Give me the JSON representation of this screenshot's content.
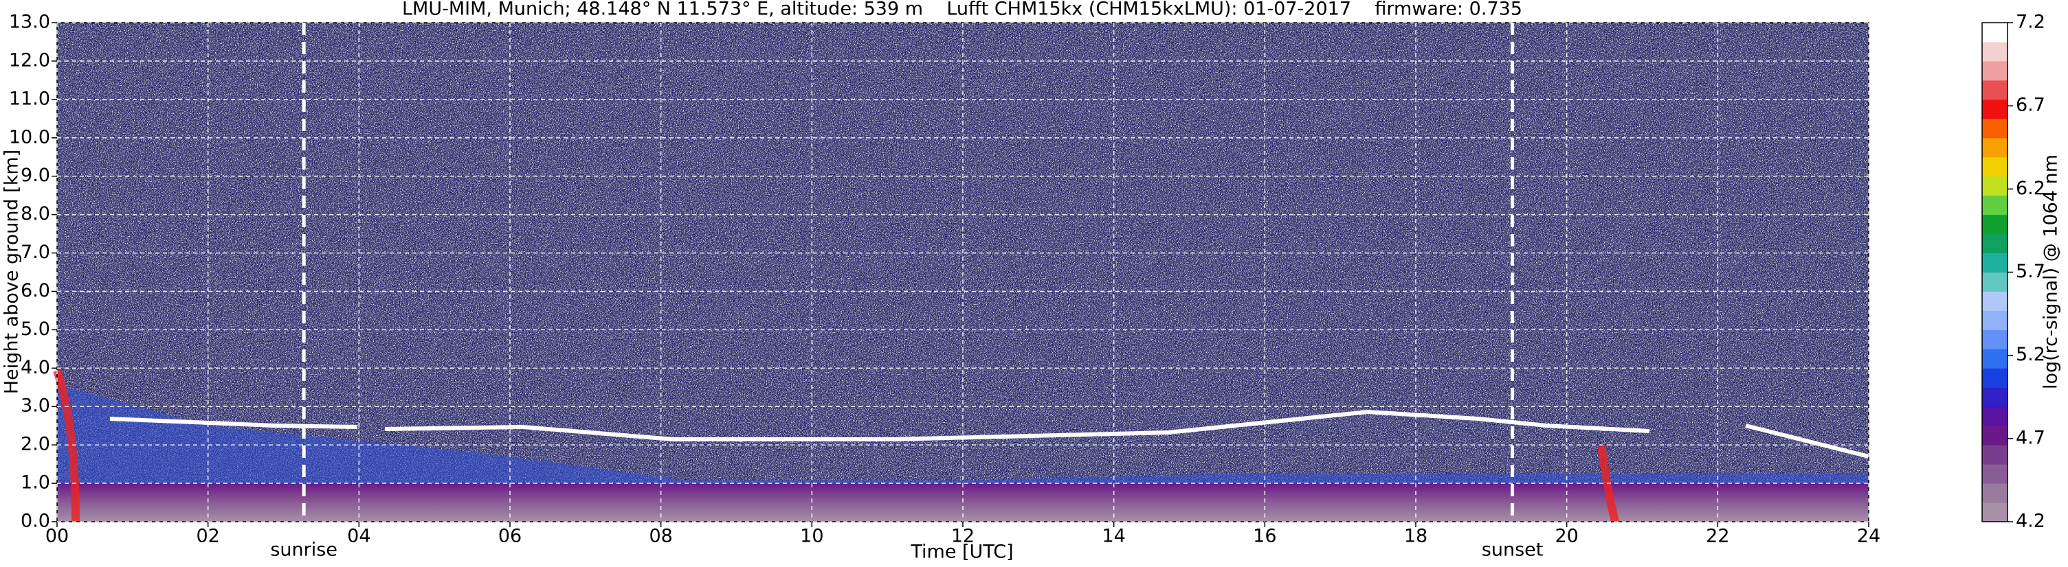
{
  "chart_data": {
    "type": "heatmap",
    "title": "LMU-MIM, Munich; 48.148° N 11.573° E, altitude: 539 m    Lufft CHM15kx (CHM15kxLMU): 01-07-2017    firmware: 0.735",
    "x_label": "Time [UTC]",
    "y_label": "Height above ground [km]",
    "colorbar_label": "log(rc-signal) @ 1064 nm",
    "xlim": [
      0,
      24
    ],
    "xticks": [
      {
        "value": 0,
        "label": "00"
      },
      {
        "value": 2,
        "label": "02"
      },
      {
        "value": 4,
        "label": "04"
      },
      {
        "value": 6,
        "label": "06"
      },
      {
        "value": 8,
        "label": "08"
      },
      10,
      12,
      14,
      16,
      18,
      20,
      22,
      24
    ],
    "ylim": [
      0,
      13
    ],
    "yticks": [
      {
        "value": 0,
        "label": "0.0"
      },
      {
        "value": 1,
        "label": "1.0"
      },
      {
        "value": 2,
        "label": "2.0"
      },
      {
        "value": 3,
        "label": "3.0"
      },
      {
        "value": 4,
        "label": "4.0"
      },
      {
        "value": 5,
        "label": "5.0"
      },
      {
        "value": 6,
        "label": "6.0"
      },
      {
        "value": 7,
        "label": "7.0"
      },
      {
        "value": 8,
        "label": "8.0"
      },
      {
        "value": 9,
        "label": "9.0"
      },
      {
        "value": 10,
        "label": "10.0"
      },
      {
        "value": 11,
        "label": "11.0"
      },
      {
        "value": 12,
        "label": "12.0"
      },
      {
        "value": 13,
        "label": "13.0"
      }
    ],
    "clim": [
      4.2,
      7.2
    ],
    "cticks": [
      4.2,
      4.7,
      5.2,
      5.7,
      6.2,
      6.7,
      7.2
    ],
    "colorscale": [
      "#a890a8",
      "#9a7a9e",
      "#8a5c95",
      "#7a3c8c",
      "#6a1a88",
      "#5a10a0",
      "#3020c8",
      "#1840e0",
      "#3070f0",
      "#6090f8",
      "#90b0f8",
      "#b0c8f8",
      "#60c8c0",
      "#20b0a0",
      "#10a060",
      "#10a030",
      "#60d040",
      "#c0e020",
      "#f0d000",
      "#f8a000",
      "#f86000",
      "#f01010",
      "#e85050",
      "#f0a0a0",
      "#f4d0d0",
      "#ffffff"
    ],
    "grid": true,
    "annotations": [
      {
        "text": "sunrise",
        "x": 3.27
      },
      {
        "text": "sunset",
        "x": 19.28
      }
    ]
  }
}
